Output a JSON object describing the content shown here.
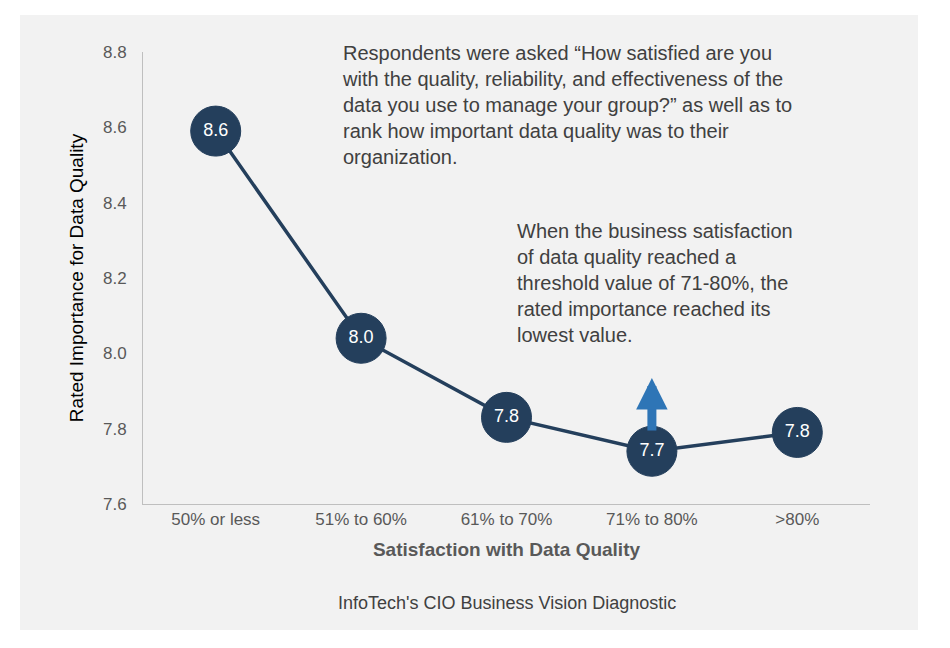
{
  "chart_data": {
    "type": "line",
    "categories": [
      "50% or less",
      "51% to 60%",
      "61% to 70%",
      "71% to 80%",
      ">80%"
    ],
    "values": [
      8.59,
      8.04,
      7.83,
      7.74,
      7.79
    ],
    "value_labels": [
      "8.6",
      "8.0",
      "7.8",
      "7.7",
      "7.8"
    ],
    "data_labels": true,
    "color": "#243f5c",
    "marker": "circle",
    "line_style": "solid",
    "xlabel": "Satisfaction with Data Quality",
    "ylabel": "Rated Importance for Data Quality",
    "ylim": [
      7.6,
      8.8
    ],
    "yticks": [
      7.6,
      7.8,
      {
        "value": 8,
        "label": "8.0"
      },
      8.2,
      8.4,
      8.6,
      8.8
    ],
    "grid": false,
    "annotations": [
      "Respondents were asked “How satisfied are you\nwith the quality, reliability, and effectiveness of the\ndata you use to manage your group?” as well as to\nrank how important data quality was to their\norganization.",
      "When the business satisfaction\nof data quality reached a\nthreshold value of 71-80%, the\nrated importance reached its\nlowest value."
    ],
    "source": "InfoTech's CIO Business Vision Diagnostic"
  }
}
